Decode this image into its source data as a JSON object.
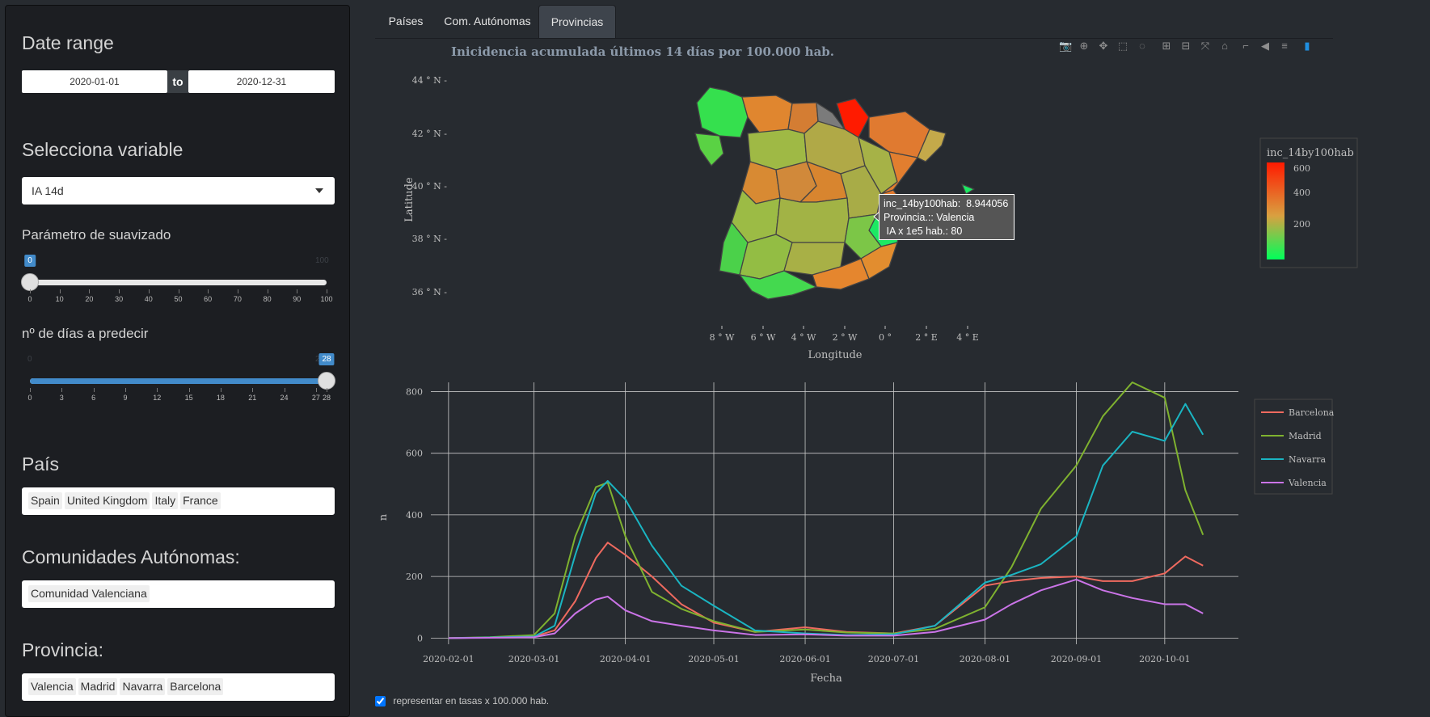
{
  "sidebar": {
    "date_range": {
      "heading": "Date range",
      "start": "2020-01-01",
      "separator": "to",
      "end": "2020-12-31"
    },
    "variable": {
      "heading": "Selecciona variable",
      "selected": "IA 14d"
    },
    "smoothing": {
      "label": "Parámetro de suavizado",
      "min": "0",
      "max": "100",
      "value": 0,
      "value_label": "0",
      "ticks": [
        "0",
        "10",
        "20",
        "30",
        "40",
        "50",
        "60",
        "70",
        "80",
        "90",
        "100"
      ]
    },
    "predict_days": {
      "label": "nº de días a predecir",
      "min": "0",
      "max": "28",
      "value": 28,
      "value_label": "28",
      "ticks": [
        "0",
        "3",
        "6",
        "9",
        "12",
        "15",
        "18",
        "21",
        "24",
        "27",
        "28"
      ]
    },
    "country": {
      "heading": "País",
      "tags": [
        "Spain",
        "United Kingdom",
        "Italy",
        "France"
      ]
    },
    "autonomous_communities": {
      "heading": "Comunidades Autónomas:",
      "tags": [
        "Comunidad Valenciana"
      ]
    },
    "province": {
      "heading": "Provincia:",
      "tags": [
        "Valencia",
        "Madrid",
        "Navarra",
        "Barcelona"
      ]
    }
  },
  "tabs": [
    {
      "label": "Países",
      "active": false
    },
    {
      "label": "Com. Autónomas",
      "active": false
    },
    {
      "label": "Provincias",
      "active": true
    }
  ],
  "modebar": {
    "icons": [
      "camera-icon",
      "zoom-icon",
      "pan-icon",
      "box-select-icon",
      "lasso-icon",
      "zoom-in-icon",
      "zoom-out-icon",
      "autoscale-icon",
      "reset-axes-icon",
      "spike-lines-icon",
      "hover-closest-icon",
      "hover-compare-icon",
      "plotly-logo-icon"
    ]
  },
  "map": {
    "title": "Inicidencia acumulada últimos 14 días por 100.000 hab.",
    "ylabel": "Latitude",
    "xlabel": "Longitude",
    "lat_ticks": [
      "44 ° N -",
      "42 ° N -",
      "40 ° N -",
      "38 ° N -",
      "36 ° N -"
    ],
    "lon_ticks": [
      "8 ° W",
      "6 ° W",
      "4 ° W",
      "2 ° W",
      "0 °",
      "2 ° E",
      "4 ° E"
    ],
    "colorbar": {
      "title": "inc_14by100hab",
      "ticks": [
        "600",
        "400",
        "200"
      ],
      "colors": [
        "#ff1a00",
        "#d9a040",
        "#00ff5a"
      ]
    },
    "tooltip": {
      "line1": "inc_14by100hab:  8.944056",
      "line2": "Provincia.:: Valencia",
      "line3": " IA x 1e5 hab.: 80"
    }
  },
  "chart_data": {
    "type": "line",
    "xlabel": "Fecha",
    "ylabel": "n",
    "x_ticks": [
      "2020-02-01",
      "2020-03-01",
      "2020-04-01",
      "2020-05-01",
      "2020-06-01",
      "2020-07-01",
      "2020-08-01",
      "2020-09-01",
      "2020-10-01"
    ],
    "y_ticks": [
      "0",
      "200",
      "400",
      "600",
      "800"
    ],
    "ylim": [
      -20,
      830
    ],
    "xlim": [
      "2020-01-26",
      "2020-10-26"
    ],
    "legend_position": "top-right",
    "dates": [
      "2020-02-01",
      "2020-02-15",
      "2020-03-01",
      "2020-03-08",
      "2020-03-15",
      "2020-03-22",
      "2020-03-26",
      "2020-04-01",
      "2020-04-10",
      "2020-04-20",
      "2020-05-01",
      "2020-05-15",
      "2020-06-01",
      "2020-06-15",
      "2020-07-01",
      "2020-07-15",
      "2020-08-01",
      "2020-08-10",
      "2020-08-20",
      "2020-09-01",
      "2020-09-10",
      "2020-09-20",
      "2020-10-01",
      "2020-10-08",
      "2020-10-14"
    ],
    "series": [
      {
        "name": "Barcelona",
        "color": "#ef6a5f",
        "values": [
          0,
          2,
          5,
          25,
          120,
          260,
          310,
          270,
          200,
          110,
          50,
          20,
          35,
          20,
          15,
          40,
          170,
          185,
          195,
          200,
          185,
          185,
          210,
          265,
          235
        ]
      },
      {
        "name": "Madrid",
        "color": "#7fb22f",
        "values": [
          0,
          3,
          10,
          80,
          330,
          490,
          505,
          330,
          150,
          95,
          55,
          20,
          28,
          18,
          15,
          30,
          100,
          230,
          420,
          560,
          720,
          830,
          780,
          480,
          335
        ]
      },
      {
        "name": "Navarra",
        "color": "#1ab5c2",
        "values": [
          0,
          2,
          5,
          40,
          270,
          470,
          510,
          450,
          300,
          170,
          105,
          25,
          15,
          10,
          12,
          40,
          180,
          205,
          240,
          330,
          560,
          670,
          640,
          760,
          660
        ]
      },
      {
        "name": "Valencia",
        "color": "#cb74e8",
        "values": [
          0,
          1,
          3,
          15,
          80,
          125,
          135,
          90,
          55,
          40,
          25,
          10,
          12,
          8,
          8,
          20,
          60,
          110,
          155,
          190,
          155,
          130,
          110,
          110,
          80
        ]
      }
    ]
  },
  "checkbox": {
    "label": "representar en tasas x 100.000 hab.",
    "checked": true
  }
}
